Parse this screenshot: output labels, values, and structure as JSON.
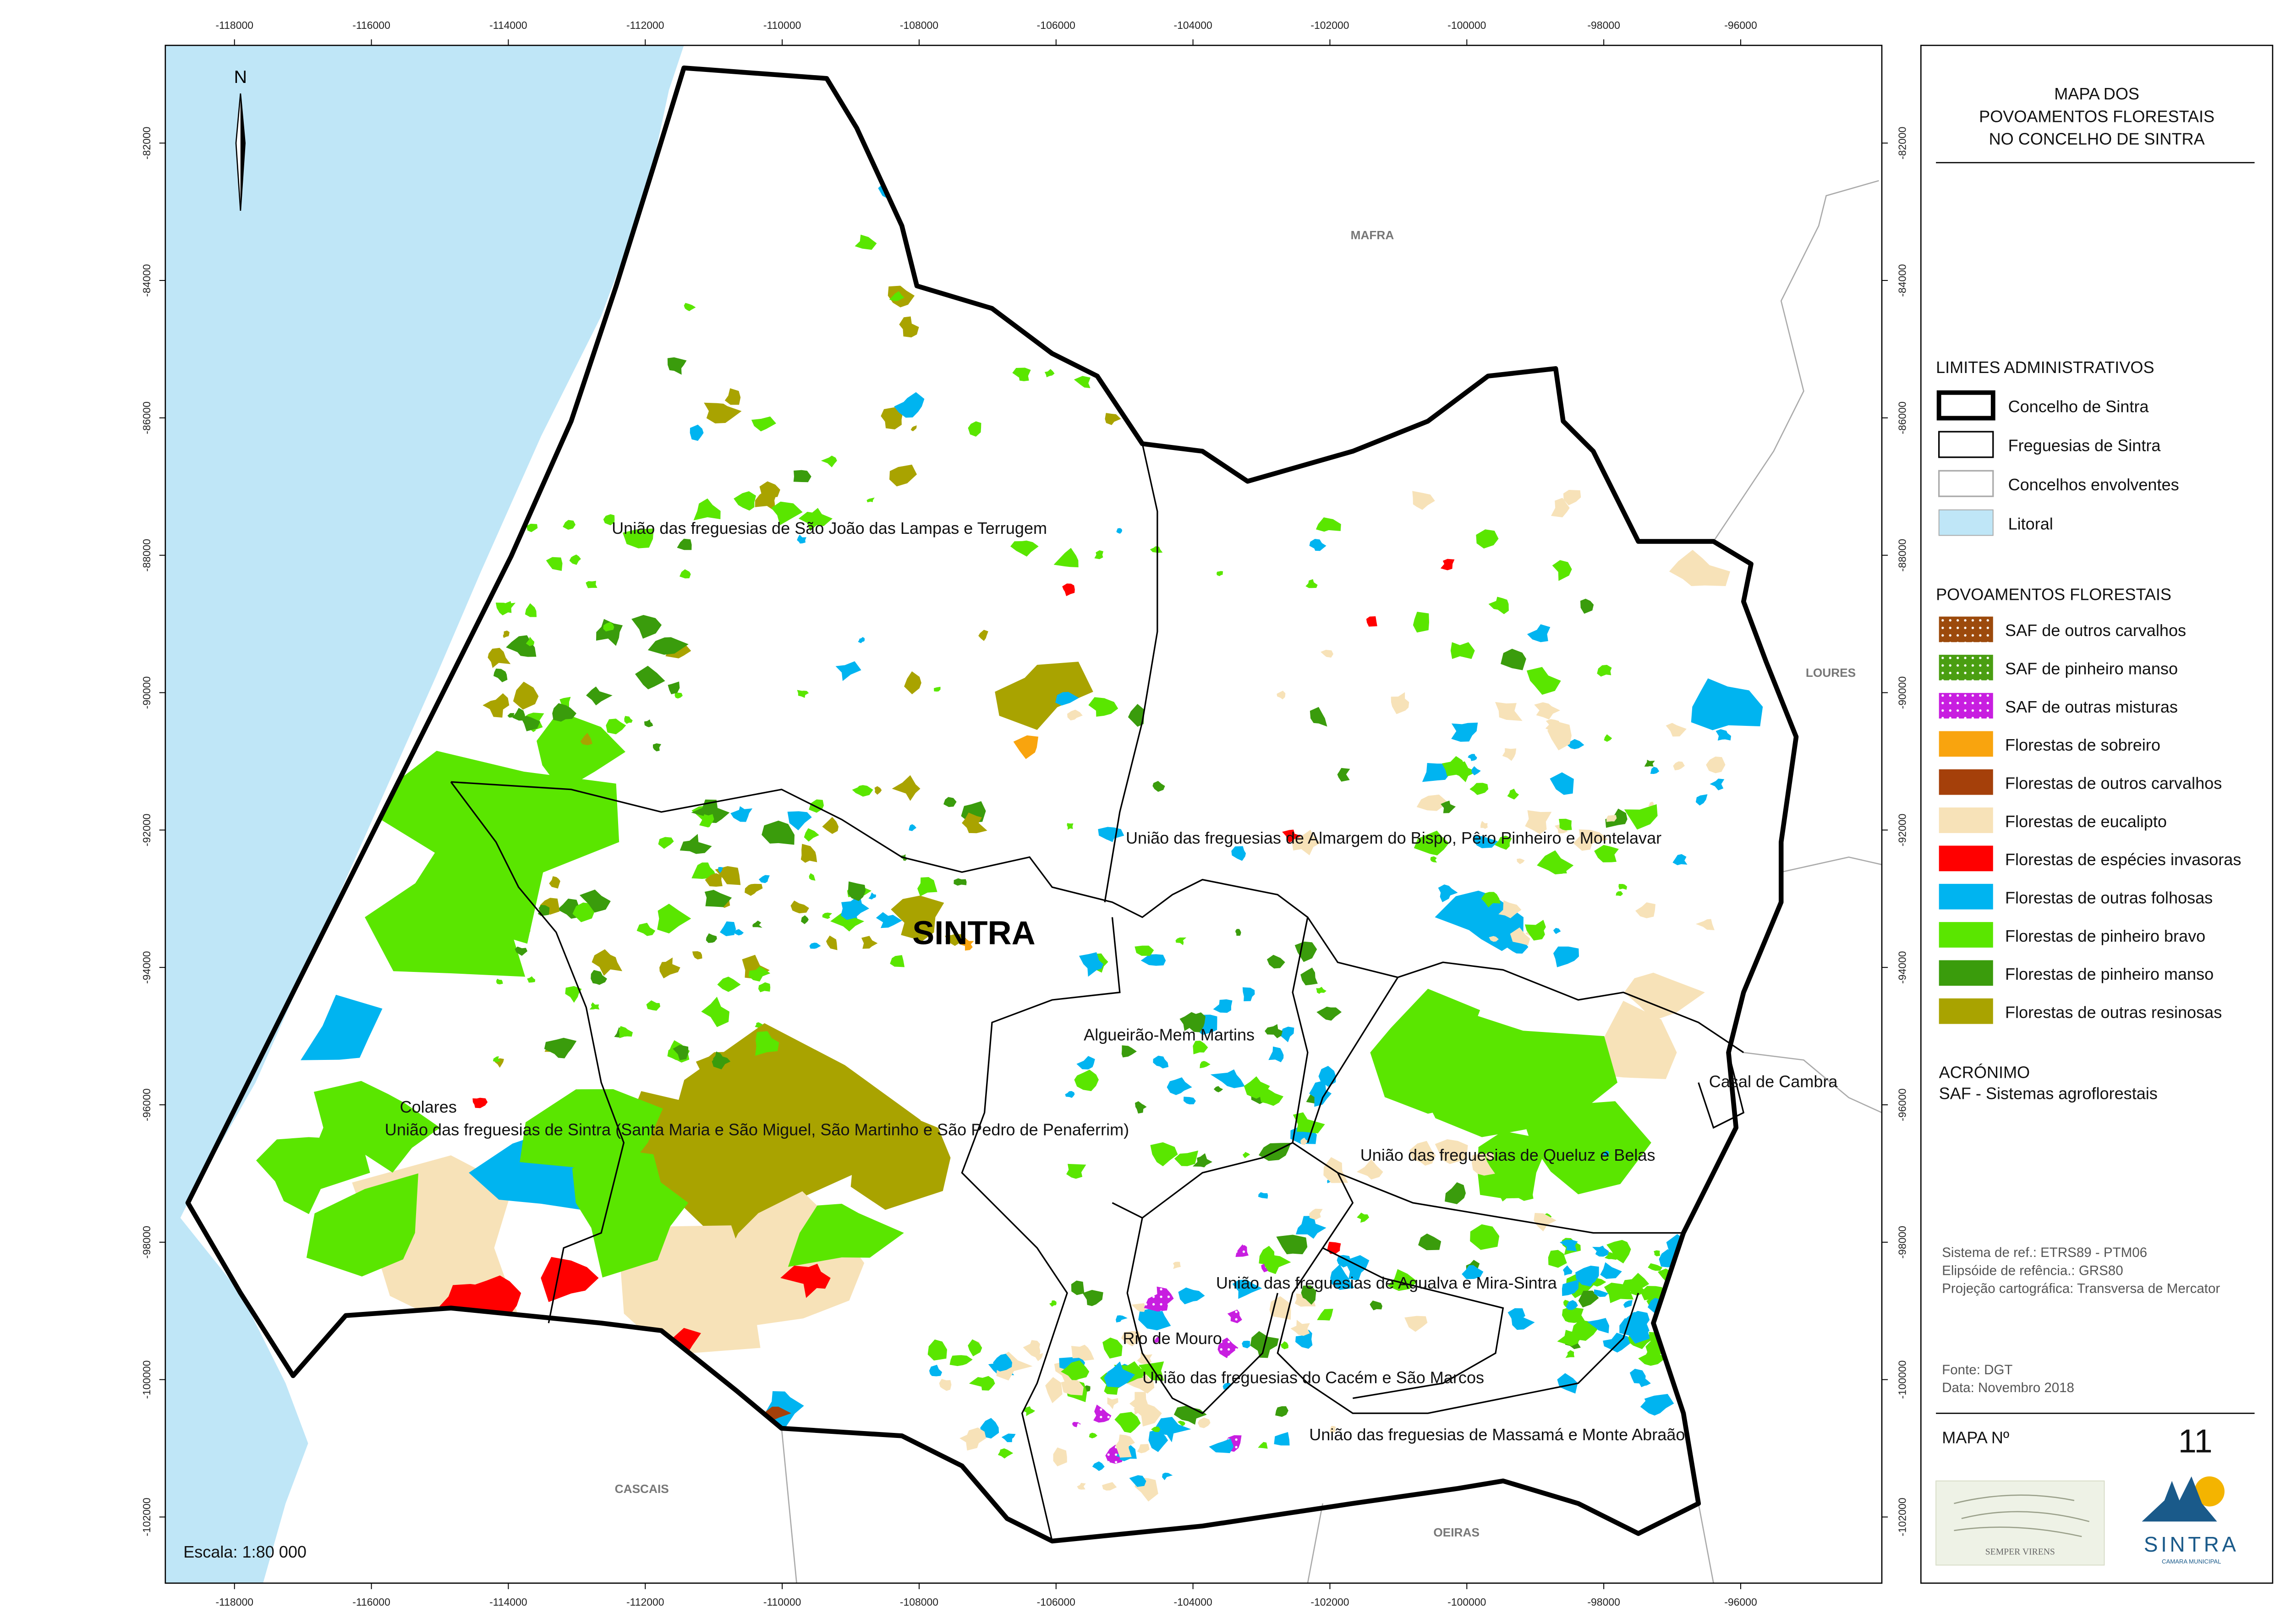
{
  "title": [
    "MAPA DOS",
    "POVOAMENTOS FLORESTAIS",
    "NO CONCELHO DE SINTRA"
  ],
  "x_ticks": [
    "-118000",
    "-116000",
    "-114000",
    "-112000",
    "-110000",
    "-108000",
    "-106000",
    "-104000",
    "-102000",
    "-100000",
    "-98000",
    "-96000"
  ],
  "y_ticks": [
    "-82000",
    "-84000",
    "-86000",
    "-88000",
    "-90000",
    "-92000",
    "-94000",
    "-96000",
    "-98000",
    "-100000",
    "-102000"
  ],
  "north": "N",
  "scale": "Escala: 1:80 000",
  "municipality": "SINTRA",
  "neighbors": [
    "MAFRA",
    "LOURES",
    "CASCAIS",
    "OEIRAS"
  ],
  "parishes": [
    "União das freguesias de São João das Lampas e Terrugem",
    "União das freguesias de Almargem do Bispo, Pêro Pinheiro e Montelavar",
    "Algueirão-Mem Martins",
    "Colares",
    "União das freguesias de Sintra (Santa Maria e São Miguel, São Martinho e São Pedro de Penaferrim)",
    "Casal de Cambra",
    "União das freguesias de Queluz e Belas",
    "União das freguesias de Agualva e Mira-Sintra",
    "Rio de Mouro",
    "União das freguesias do Cacém e São Marcos",
    "União das freguesias de Massamá e Monte Abraão"
  ],
  "legend": {
    "admin_title": "LIMITES ADMINISTRATIVOS",
    "admin_items": [
      "Concelho de Sintra",
      "Freguesias de Sintra",
      "Concelhos envolventes",
      "Litoral"
    ],
    "forest_title": "POVOAMENTOS FLORESTAIS",
    "forest_items": [
      {
        "label": "SAF de outros carvalhos",
        "color": "#9c4a0c",
        "pattern": "dots"
      },
      {
        "label": "SAF de pinheiro manso",
        "color": "#4a9e12",
        "pattern": "dots"
      },
      {
        "label": "SAF de outras misturas",
        "color": "#c81ee0",
        "pattern": "dots"
      },
      {
        "label": "Florestas de sobreiro",
        "color": "#f9a40e"
      },
      {
        "label": "Florestas de outros carvalhos",
        "color": "#a5400a"
      },
      {
        "label": "Florestas de eucalipto",
        "color": "#f7e2b8"
      },
      {
        "label": "Florestas de espécies invasoras",
        "color": "#ff0000"
      },
      {
        "label": "Florestas de outras folhosas",
        "color": "#00b4f0"
      },
      {
        "label": "Florestas de pinheiro bravo",
        "color": "#5ae600"
      },
      {
        "label": "Florestas de pinheiro manso",
        "color": "#3a9c0c"
      },
      {
        "label": "Florestas de outras resinosas",
        "color": "#a9a300"
      }
    ]
  },
  "acronym": {
    "title": "ACRÓNIMO",
    "text": "SAF - Sistemas agroflorestais"
  },
  "reference": [
    "Sistema de ref.: ETRS89 - PTM06",
    "Elipsóide de refência.: GRS80",
    "Projeção cartográfica: Transversa de Mercator"
  ],
  "source": [
    "Fonte: DGT",
    "Data: Novembro 2018"
  ],
  "map_no": {
    "label": "MAPA Nº",
    "value": "11"
  },
  "logos": {
    "left": "SEMPER  VIRENS",
    "right": "SINTRA",
    "right_sub": "CAMARA MUNICIPAL"
  }
}
